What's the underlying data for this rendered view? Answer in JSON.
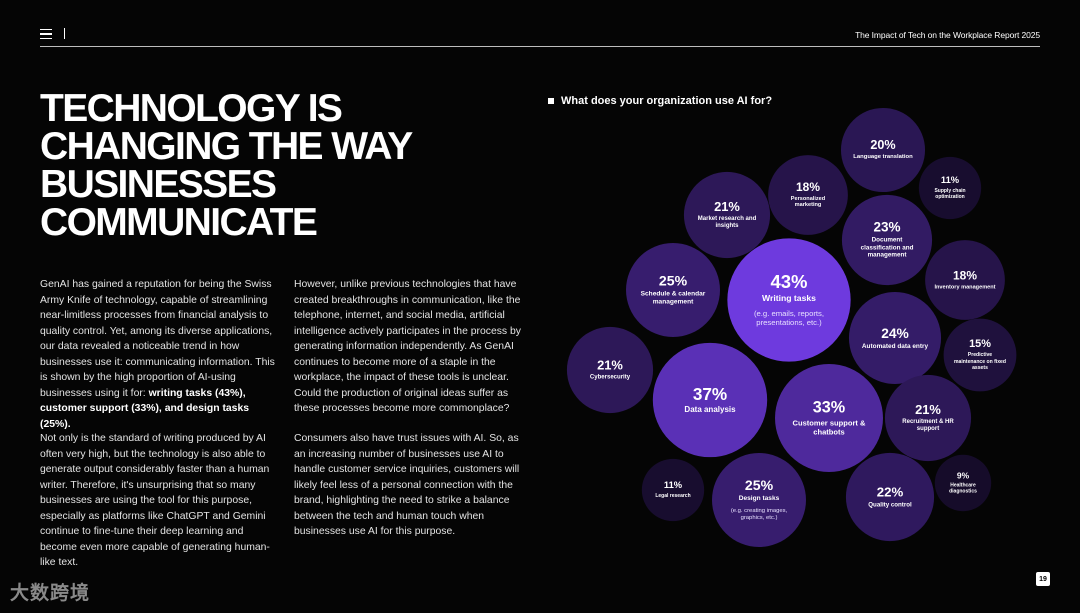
{
  "header": {
    "report_title": "The Impact of Tech on the Workplace Report 2025",
    "separator": "|"
  },
  "headline": "TECHNOLOGY IS CHANGING THE WAY BUSINESSES COMMUNICATE",
  "column_1": {
    "paragraph_1": {
      "text": "GenAI has gained a reputation for being the Swiss Army Knife of technology, capable of streamlining near-limitless processes from financial analysis to quality control. Yet, among its diverse applications, our data revealed a noticeable trend in how businesses use it: communicating information. This is shown by the high proportion of AI-using businesses using it for:",
      "emphasis": "writing tasks (43%), customer support (33%), and design tasks (25%)."
    },
    "paragraph_2": "Not only is the standard of writing produced by AI often very high, but the technology is also able to generate output considerably faster than a human writer. Therefore, it's unsurprising that so many businesses are using the tool for this purpose, especially as platforms like ChatGPT and Gemini continue to fine-tune their deep learning and become even more capable of generating human-like text."
  },
  "column_2": {
    "paragraph_1": "However, unlike previous technologies that have created breakthroughs in communication, like the telephone, internet, and social media, artificial intelligence actively participates in the process by generating information independently. As GenAI continues to become more of a staple in the workplace, the impact of these tools is unclear. Could the production of original ideas suffer as these processes become more commonplace?",
    "paragraph_2": "Consumers also have trust issues with AI. So, as an increasing number of businesses use AI to handle customer service inquiries, customers will likely feel less of a personal connection with the brand, highlighting the need to strike a balance between the tech and human touch when businesses use AI for this purpose."
  },
  "chart_data": {
    "type": "bubble",
    "title": "What does your organization use AI for?",
    "categories": [
      "Language translation",
      "Supply chain optimization",
      "Personalized marketing",
      "Market research and insights",
      "Document classification and management",
      "Schedule & calendar management",
      "Writing tasks",
      "Inventory management",
      "Automated data entry",
      "Predictive maintenance on fixed assets",
      "Cybersecurity",
      "Data analysis",
      "Customer support & chatbots",
      "Recruitment & HR support",
      "Legal research",
      "Design tasks",
      "Quality control",
      "Healthcare diagnostics"
    ],
    "values": [
      20,
      11,
      18,
      21,
      23,
      25,
      43,
      18,
      24,
      15,
      21,
      37,
      33,
      21,
      11,
      25,
      22,
      9
    ],
    "value_labels": [
      "20%",
      "11%",
      "18%",
      "21%",
      "23%",
      "25%",
      "43%",
      "18%",
      "24%",
      "15%",
      "21%",
      "37%",
      "33%",
      "21%",
      "11%",
      "25%",
      "22%",
      "9%"
    ],
    "category_notes": [
      null,
      null,
      null,
      null,
      null,
      null,
      "(e.g. emails, reports, presentations, etc.)",
      null,
      null,
      null,
      null,
      null,
      null,
      null,
      null,
      "(e.g. creating images, graphics, etc.)",
      null,
      null
    ]
  },
  "page_number": "19",
  "watermark": "大数跨境"
}
